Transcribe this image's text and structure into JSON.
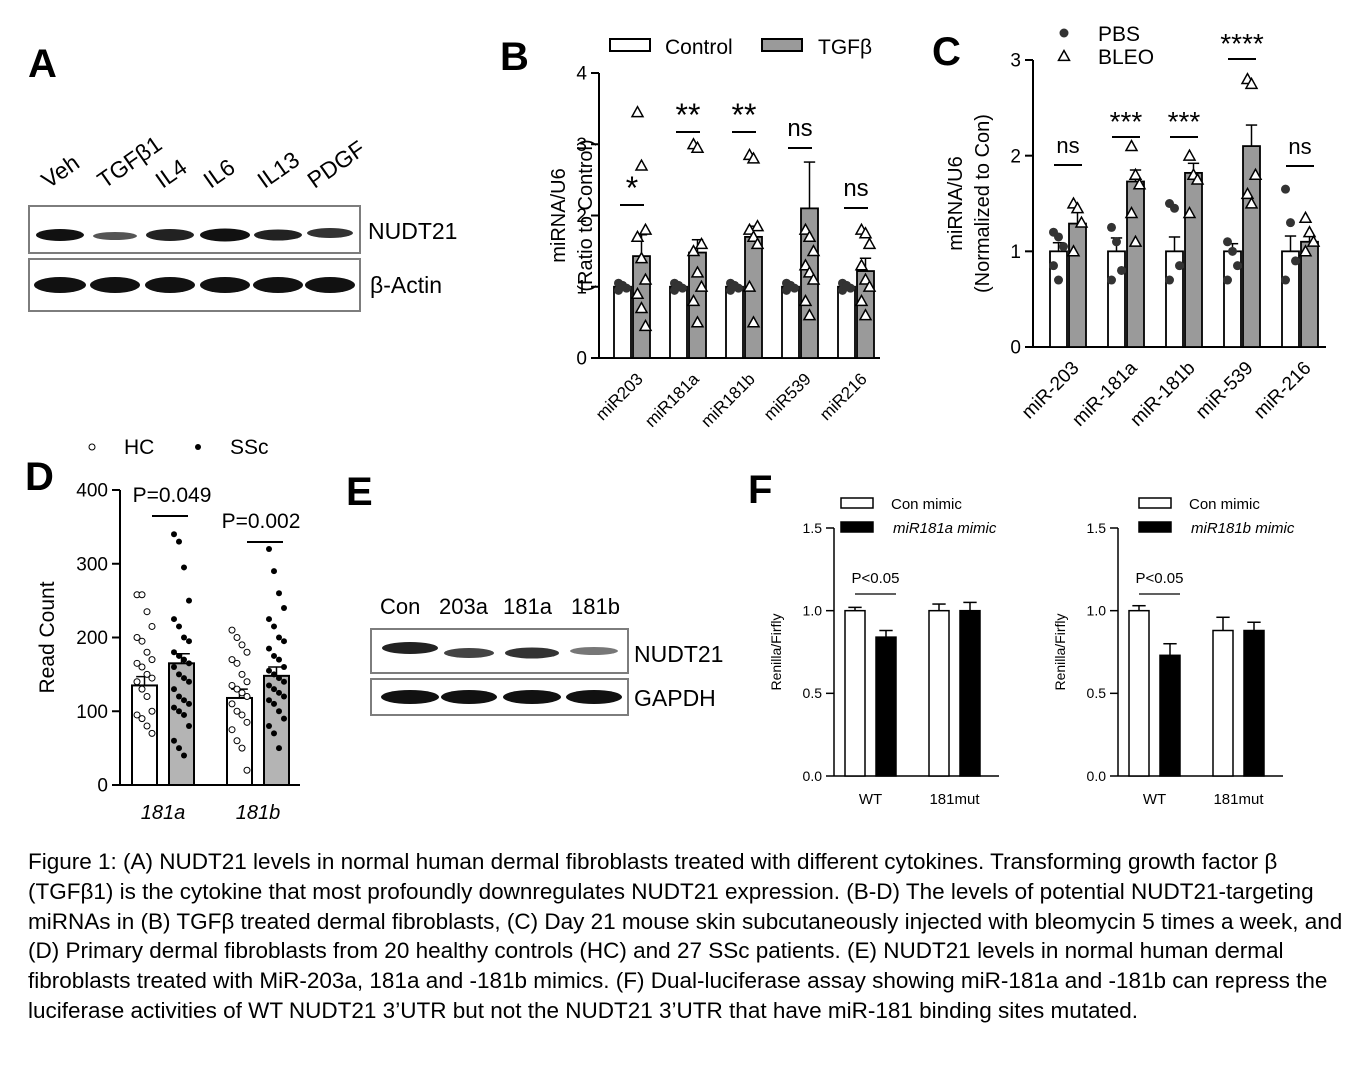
{
  "panels": {
    "A": "A",
    "B": "B",
    "C": "C",
    "D": "D",
    "E": "E",
    "F": "F"
  },
  "panel_a": {
    "lanes": [
      "Veh",
      "TGFβ1",
      "IL4",
      "IL6",
      "IL13",
      "PDGF"
    ],
    "blots": [
      "NUDT21",
      "β-Actin"
    ]
  },
  "panel_e": {
    "lanes": [
      "Con",
      "203a",
      "181a",
      "181b"
    ],
    "blots": [
      "NUDT21",
      "GAPDH"
    ]
  },
  "chart_data": [
    {
      "panel": "B",
      "type": "bar",
      "ylabel": "miRNA/U6 (Ratio to Control)",
      "ylabel_lines": [
        "miRNA/U6",
        "(Ratio to Control)"
      ],
      "ylim": [
        0,
        4
      ],
      "yticks": [
        "0",
        "1",
        "2",
        "3",
        "4"
      ],
      "categories": [
        "miR203",
        "miR181a",
        "miR181b",
        "miR539",
        "miR216"
      ],
      "series": [
        {
          "name": "Control",
          "values": [
            1.0,
            1.0,
            1.0,
            1.0,
            1.0
          ],
          "color": "#ffffff"
        },
        {
          "name": "TGFβ",
          "values": [
            1.43,
            1.48,
            1.7,
            2.1,
            1.22
          ],
          "errors": [
            0.3,
            0.18,
            0.15,
            0.65,
            0.18
          ],
          "color": "#9a9a9a"
        }
      ],
      "points_treated": [
        [
          3.45,
          2.7,
          1.8,
          1.7,
          1.4,
          1.1,
          0.9,
          0.7,
          0.45
        ],
        [
          3.0,
          2.95,
          1.6,
          1.5,
          1.2,
          1.0,
          0.8,
          0.5
        ],
        [
          2.85,
          2.8,
          1.85,
          1.8,
          1.7,
          1.6,
          1.0,
          0.5
        ],
        [
          1.8,
          1.7,
          1.5,
          1.3,
          1.2,
          1.1,
          0.8,
          0.6
        ],
        [
          1.8,
          1.75,
          1.6,
          1.3,
          1.1,
          1.0,
          0.8,
          0.6
        ]
      ],
      "significance": [
        "*",
        "**",
        "**",
        "ns",
        "ns"
      ],
      "legend": [
        "Control",
        "TGFβ"
      ]
    },
    {
      "panel": "C",
      "type": "bar",
      "ylabel": "miRNA/U6 (Normalized to Con)",
      "ylabel_lines": [
        "miRNA/U6",
        "(Normalized to Con)"
      ],
      "ylim": [
        0,
        3
      ],
      "yticks": [
        "0",
        "1",
        "2",
        "3"
      ],
      "categories": [
        "miR-203",
        "miR-181a",
        "miR-181b",
        "miR-539",
        "miR-216"
      ],
      "series": [
        {
          "name": "PBS",
          "values": [
            1.0,
            1.0,
            1.0,
            1.0,
            1.0
          ],
          "errors": [
            0.09,
            0.14,
            0.15,
            0.08,
            0.16
          ],
          "color": "#ffffff"
        },
        {
          "name": "BLEO",
          "values": [
            1.29,
            1.73,
            1.82,
            2.1,
            1.1
          ],
          "errors": [
            0.12,
            0.12,
            0.1,
            0.22,
            0.06
          ],
          "color": "#9a9a9a"
        }
      ],
      "points_pbs": [
        [
          1.2,
          1.15,
          1.05,
          0.85,
          0.7
        ],
        [
          1.25,
          1.1,
          0.8,
          0.7
        ],
        [
          1.5,
          1.45,
          0.85,
          0.7
        ],
        [
          1.1,
          1.0,
          0.85,
          0.7
        ],
        [
          1.65,
          1.3,
          0.9,
          0.7
        ]
      ],
      "points_bleo": [
        [
          1.5,
          1.45,
          1.3,
          1.0
        ],
        [
          2.1,
          1.8,
          1.7,
          1.4,
          1.1
        ],
        [
          2.0,
          1.8,
          1.75,
          1.4
        ],
        [
          2.8,
          2.75,
          1.8,
          1.6,
          1.5
        ],
        [
          1.35,
          1.2,
          1.1,
          1.0
        ]
      ],
      "significance": [
        "ns",
        "***",
        "***",
        "****",
        "ns"
      ],
      "legend": [
        "PBS",
        "BLEO"
      ]
    },
    {
      "panel": "D",
      "type": "bar",
      "ylabel": "Read Count",
      "ylim": [
        0,
        400
      ],
      "yticks": [
        "0",
        "100",
        "200",
        "300",
        "400"
      ],
      "categories": [
        "181a",
        "181b"
      ],
      "series": [
        {
          "name": "HC",
          "values": [
            135,
            118
          ],
          "errors": [
            12,
            12
          ],
          "color": "#ffffff"
        },
        {
          "name": "SSc",
          "values": [
            165,
            148
          ],
          "errors": [
            13,
            12
          ],
          "color": "#b4b4b4"
        }
      ],
      "points_hc": [
        [
          258,
          258,
          235,
          215,
          200,
          195,
          180,
          170,
          165,
          160,
          150,
          145,
          140,
          130,
          120,
          100,
          95,
          90,
          80,
          70
        ],
        [
          210,
          200,
          190,
          180,
          170,
          165,
          150,
          140,
          135,
          130,
          125,
          120,
          110,
          100,
          95,
          85,
          75,
          60,
          50,
          20
        ]
      ],
      "points_ssc": [
        [
          340,
          330,
          295,
          250,
          225,
          215,
          200,
          195,
          180,
          175,
          170,
          165,
          160,
          150,
          145,
          140,
          130,
          120,
          115,
          110,
          105,
          100,
          95,
          80,
          60,
          50,
          40
        ],
        [
          320,
          290,
          260,
          240,
          225,
          215,
          200,
          195,
          185,
          175,
          170,
          160,
          155,
          150,
          145,
          140,
          135,
          130,
          125,
          120,
          115,
          110,
          100,
          90,
          80,
          70,
          50
        ]
      ],
      "pvalues": [
        "P=0.049",
        "P=0.002"
      ],
      "legend": [
        "HC",
        "SSc"
      ]
    },
    {
      "panel": "F1",
      "type": "bar",
      "ylabel": "Renilla/Firfly",
      "ylim": [
        0,
        1.5
      ],
      "yticks": [
        "0.0",
        "0.5",
        "1.0",
        "1.5"
      ],
      "categories": [
        "WT",
        "181mut"
      ],
      "series": [
        {
          "name": "Con mimic",
          "values": [
            1.0,
            1.0
          ],
          "errors": [
            0.02,
            0.04
          ],
          "color": "#ffffff"
        },
        {
          "name": "miR181a mimic",
          "values": [
            0.84,
            1.0
          ],
          "errors": [
            0.04,
            0.05
          ],
          "color": "#000000"
        }
      ],
      "pvalue": "P<0.05",
      "legend": [
        "Con mimic",
        "miR181a mimic"
      ]
    },
    {
      "panel": "F2",
      "type": "bar",
      "ylabel": "Renilla/Firfly",
      "ylim": [
        0,
        1.5
      ],
      "yticks": [
        "0.0",
        "0.5",
        "1.0",
        "1.5"
      ],
      "categories": [
        "WT",
        "181mut"
      ],
      "series": [
        {
          "name": "Con mimic",
          "values": [
            1.0,
            0.88
          ],
          "errors": [
            0.03,
            0.08
          ],
          "color": "#ffffff"
        },
        {
          "name": "miR181b mimic",
          "values": [
            0.73,
            0.88
          ],
          "errors": [
            0.07,
            0.05
          ],
          "color": "#000000"
        }
      ],
      "pvalue": "P<0.05",
      "legend": [
        "Con mimic",
        "miR181b mimic"
      ]
    }
  ],
  "caption": "Figure 1: (A) NUDT21 levels in normal human dermal fibroblasts treated with different cytokines. Transforming growth factor β (TGFβ1) is the cytokine that most profoundly downregulates NUDT21 expression. (B-D) The levels of potential NUDT21-targeting miRNAs in (B) TGFβ treated dermal fibroblasts, (C) Day 21 mouse skin subcutaneously injected with bleomycin 5 times a week, and (D) Primary dermal fibroblasts from 20 healthy controls (HC) and 27 SSc patients. (E) NUDT21 levels in normal human dermal fibroblasts treated with MiR-203a, 181a and -181b mimics. (F) Dual-luciferase assay showing miR-181a and -181b can repress the luciferase activities of WT NUDT21 3’UTR but not the NUDT21 3’UTR that have miR-181 binding sites mutated."
}
